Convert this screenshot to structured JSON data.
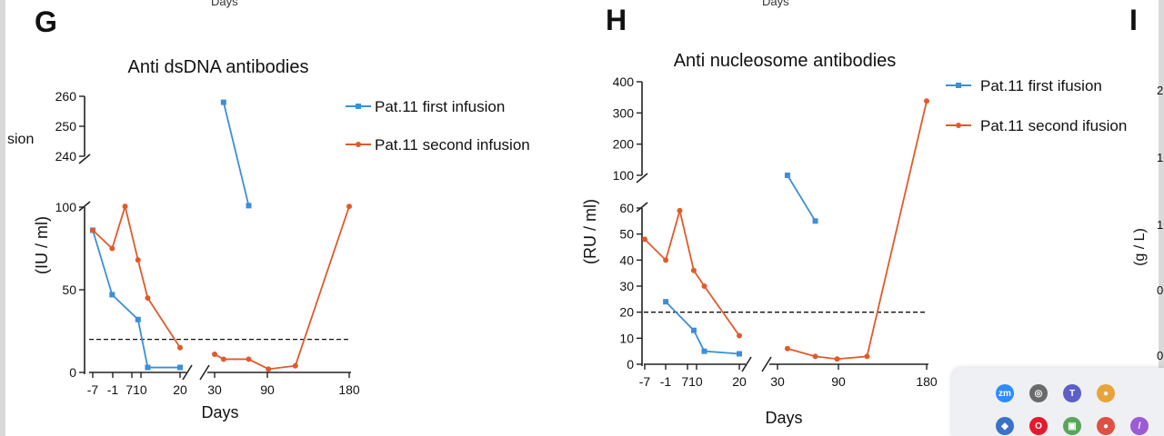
{
  "panels": {
    "g_letter": "G",
    "h_letter": "H",
    "i_letter": "I",
    "cut_top_g": "Days",
    "cut_top_h": "Days",
    "cut_left_text": "sion",
    "i_ylabel": "(g / L)",
    "i_ticks": [
      "2",
      "1",
      "1",
      "0",
      "0"
    ]
  },
  "colors": {
    "first": "#3b8fd8",
    "second": "#e05a2b",
    "axis": "#222222"
  },
  "chart_data": [
    {
      "id": "G",
      "type": "line",
      "title": "Anti dsDNA antibodies",
      "xlabel": "Days",
      "ylabel": "(IU / ml)",
      "x_ticks": [
        "-7",
        "-1",
        "710",
        "20",
        "30",
        "90",
        "180"
      ],
      "y_lower_ticks": [
        "0",
        "50",
        "100"
      ],
      "y_upper_ticks": [
        "240",
        "250",
        "260"
      ],
      "ylim_lower": [
        0,
        100
      ],
      "ylim_upper": [
        240,
        260
      ],
      "threshold": 20,
      "legend": [
        "Pat.11 first infusion",
        "Pat.11 second infusion"
      ],
      "series": [
        {
          "name": "Pat.11 first infusion",
          "marker": "square",
          "segments": [
            [
              [
                -7,
                86
              ],
              [
                -1,
                47
              ],
              [
                7,
                32
              ],
              [
                10,
                3
              ],
              [
                20,
                3
              ]
            ],
            [
              [
                40,
                258
              ],
              [
                68,
                104
              ]
            ]
          ]
        },
        {
          "name": "Pat.11 second infusion",
          "marker": "circle",
          "segments": [
            [
              [
                -7,
                86
              ],
              [
                -1,
                75
              ],
              [
                3,
                102
              ],
              [
                7,
                68
              ],
              [
                10,
                45
              ],
              [
                20,
                15
              ]
            ],
            [
              [
                30,
                11
              ],
              [
                40,
                8
              ],
              [
                68,
                8
              ],
              [
                90,
                2
              ],
              [
                120,
                4
              ],
              [
                180,
                102
              ]
            ]
          ]
        }
      ]
    },
    {
      "id": "H",
      "type": "line",
      "title": "Anti nucleosome antibodies",
      "xlabel": "Days",
      "ylabel": "(RU / ml)",
      "x_ticks": [
        "-7",
        "-1",
        "710",
        "20",
        "30",
        "90",
        "180"
      ],
      "y_lower_ticks": [
        "0",
        "10",
        "20",
        "30",
        "40",
        "50",
        "60"
      ],
      "y_upper_ticks": [
        "100",
        "200",
        "300",
        "400"
      ],
      "ylim_lower": [
        0,
        60
      ],
      "ylim_upper": [
        100,
        400
      ],
      "threshold": 20,
      "legend": [
        "Pat.11 first ifusion",
        "Pat.11 second ifusion"
      ],
      "series": [
        {
          "name": "Pat.11 first ifusion",
          "marker": "square",
          "segments": [
            [
              [
                -1,
                24
              ],
              [
                7,
                13
              ],
              [
                10,
                5
              ],
              [
                20,
                4
              ]
            ],
            [
              [
                40,
                100
              ],
              [
                68,
                55
              ]
            ]
          ]
        },
        {
          "name": "Pat.11 second ifusion",
          "marker": "circle",
          "segments": [
            [
              [
                -7,
                48
              ],
              [
                -1,
                40
              ],
              [
                3,
                59
              ],
              [
                7,
                36
              ],
              [
                10,
                30
              ],
              [
                20,
                11
              ]
            ],
            [
              [
                40,
                6
              ],
              [
                68,
                3
              ],
              [
                90,
                2
              ],
              [
                120,
                3
              ],
              [
                180,
                338
              ]
            ]
          ]
        }
      ]
    }
  ],
  "taskbar": {
    "icons": [
      {
        "name": "zoom-app-icon",
        "glyph": "zm",
        "color": "#2d8cff"
      },
      {
        "name": "wifi-status-icon",
        "glyph": "◎",
        "color": "#6a6a6a"
      },
      {
        "name": "teams-app-icon",
        "glyph": "T",
        "color": "#5b5fc7"
      },
      {
        "name": "browser-app-icon",
        "glyph": "●",
        "color": "#e8a33b"
      },
      {
        "name": "shield-icon",
        "glyph": "◆",
        "color": "#3a72c9"
      },
      {
        "name": "opera-app-icon",
        "glyph": "O",
        "color": "#e21b2d"
      },
      {
        "name": "screenshot-app-icon",
        "glyph": "▣",
        "color": "#59a55a"
      },
      {
        "name": "chrome-app-icon",
        "glyph": "●",
        "color": "#dd5144"
      },
      {
        "name": "pen-app-icon",
        "glyph": "/",
        "color": "#9b5bd4"
      }
    ]
  }
}
